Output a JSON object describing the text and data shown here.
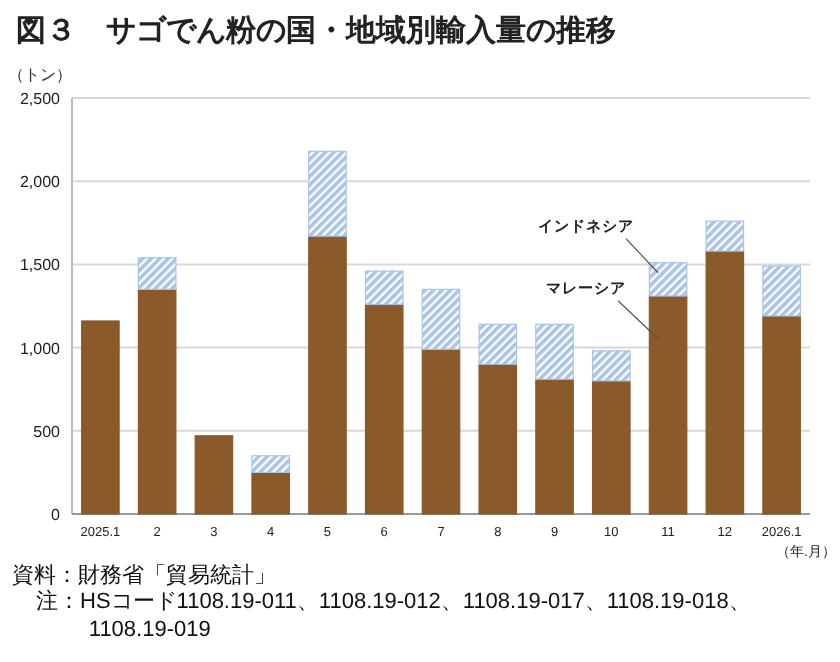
{
  "chart_data": {
    "type": "bar",
    "title": "図３　サゴでん粉の国・地域別輸入量の推移",
    "ylabel": "（トン）",
    "xlabel": "（年.月）",
    "categories": [
      "2025.1",
      "2",
      "3",
      "4",
      "5",
      "6",
      "7",
      "8",
      "9",
      "10",
      "11",
      "12",
      "2026.1"
    ],
    "stacked": true,
    "series": [
      {
        "name": "マレーシア",
        "color": "#8b5a2b",
        "values": [
          1160,
          1350,
          470,
          250,
          1670,
          1260,
          990,
          900,
          810,
          800,
          1310,
          1580,
          1190
        ]
      },
      {
        "name": "インドネシア",
        "color": "#a9c4e6",
        "values": [
          0,
          190,
          0,
          100,
          510,
          200,
          360,
          240,
          330,
          180,
          200,
          180,
          300
        ]
      }
    ],
    "ylim": [
      0,
      2500
    ],
    "yticks": [
      0,
      500,
      {
        "value": 1000,
        "label": "1,000"
      },
      {
        "value": 1500,
        "label": "1,500"
      },
      {
        "value": 2000,
        "label": "2,000"
      },
      {
        "value": 2500,
        "label": "2,500"
      }
    ],
    "grid": "y",
    "legend": false,
    "annotations": [
      "資料：財務省「貿易統計」",
      "注：HSコード1108.19-011、1108.19-012、1108.19-017、1108.19-018、1108.19-019"
    ]
  }
}
